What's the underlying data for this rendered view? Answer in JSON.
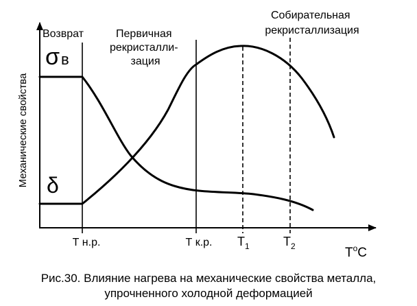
{
  "figure": {
    "y_axis_label": "Механические свойства",
    "x_axis_label": {
      "base": "T",
      "sup": "o",
      "unit": "C"
    },
    "curve_labels": {
      "sigma": {
        "symbol": "σ",
        "sub": "в"
      },
      "delta": {
        "symbol": "δ"
      }
    },
    "region_labels": {
      "recovery": "Возврат",
      "primary": [
        "Первичная",
        "рекристалли-",
        "зация"
      ],
      "collective": [
        "Собирательная",
        "рекристаллизация"
      ]
    },
    "ticks": {
      "t_nr": "Т н.р.",
      "t_kr": "Т к.р.",
      "t1": {
        "base": "T",
        "sub": "1"
      },
      "t2": {
        "base": "T",
        "sub": "2"
      }
    }
  },
  "caption": {
    "line1": "Рис.30. Влияние нагрева на механические свойства металла,",
    "line2": "упрочненного холодной деформацией"
  },
  "colors": {
    "ink": "#000000",
    "background": "#ffffff"
  }
}
